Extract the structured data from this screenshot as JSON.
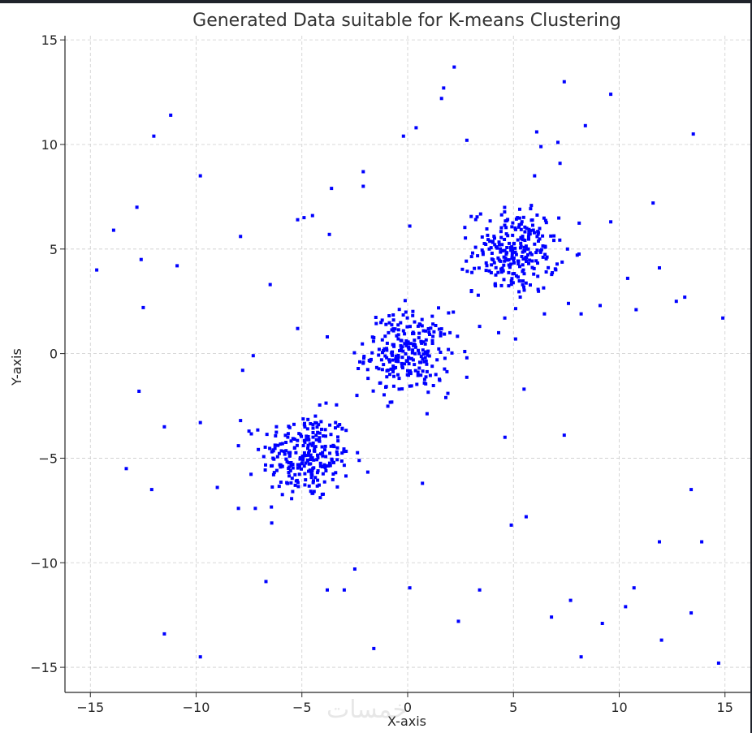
{
  "chart_data": {
    "type": "scatter",
    "title": "Generated Data suitable for K-means Clustering",
    "xlabel": "X-axis",
    "ylabel": "Y-axis",
    "xlim": [
      -16.2,
      16.2
    ],
    "ylim": [
      -16.2,
      15.2
    ],
    "xticks": [
      -15,
      -10,
      -5,
      0,
      5,
      10,
      15
    ],
    "yticks": [
      -15,
      -10,
      -5,
      0,
      5,
      10,
      15
    ],
    "xtick_labels": [
      "−15",
      "−10",
      "−5",
      "0",
      "5",
      "10",
      "15"
    ],
    "ytick_labels": [
      "−15",
      "−10",
      "−5",
      "0",
      "5",
      "10",
      "15"
    ],
    "grid": true,
    "marker_color": "#0000ff",
    "clusters": [
      {
        "center": [
          -4.8,
          -4.9
        ],
        "std": 1.05,
        "count": 260
      },
      {
        "center": [
          0.0,
          0.0
        ],
        "std": 1.0,
        "count": 250
      },
      {
        "center": [
          5.1,
          4.9
        ],
        "std": 1.0,
        "count": 260
      }
    ],
    "outliers": [
      [
        -14.7,
        4.0
      ],
      [
        -13.9,
        5.9
      ],
      [
        -12.8,
        7.0
      ],
      [
        -12.6,
        4.5
      ],
      [
        -12.5,
        2.2
      ],
      [
        -12.0,
        10.4
      ],
      [
        -11.2,
        11.4
      ],
      [
        -10.9,
        4.2
      ],
      [
        -9.8,
        8.5
      ],
      [
        -7.9,
        5.6
      ],
      [
        -6.5,
        3.3
      ],
      [
        -5.2,
        6.4
      ],
      [
        -4.9,
        6.5
      ],
      [
        -4.5,
        6.6
      ],
      [
        -3.7,
        5.7
      ],
      [
        -3.6,
        7.9
      ],
      [
        -2.1,
        8.7
      ],
      [
        -2.1,
        8.0
      ],
      [
        -0.2,
        10.4
      ],
      [
        0.4,
        10.8
      ],
      [
        0.1,
        6.1
      ],
      [
        1.6,
        12.2
      ],
      [
        1.7,
        12.7
      ],
      [
        2.2,
        13.7
      ],
      [
        2.8,
        10.2
      ],
      [
        6.1,
        10.6
      ],
      [
        6.3,
        9.9
      ],
      [
        7.1,
        10.1
      ],
      [
        7.2,
        9.1
      ],
      [
        6.0,
        8.5
      ],
      [
        7.4,
        13.0
      ],
      [
        8.4,
        10.9
      ],
      [
        9.6,
        12.4
      ],
      [
        13.5,
        10.5
      ],
      [
        11.6,
        7.2
      ],
      [
        9.6,
        6.3
      ],
      [
        10.4,
        3.6
      ],
      [
        10.8,
        2.1
      ],
      [
        11.9,
        4.1
      ],
      [
        12.7,
        2.5
      ],
      [
        13.1,
        2.7
      ],
      [
        14.9,
        1.7
      ],
      [
        9.1,
        2.3
      ],
      [
        8.2,
        1.9
      ],
      [
        7.6,
        2.4
      ],
      [
        4.3,
        1.0
      ],
      [
        5.1,
        0.7
      ],
      [
        2.0,
        1.0
      ],
      [
        2.7,
        0.1
      ],
      [
        2.8,
        -0.2
      ],
      [
        3.4,
        1.3
      ],
      [
        -5.2,
        1.2
      ],
      [
        -3.8,
        0.8
      ],
      [
        -7.3,
        -0.1
      ],
      [
        -7.8,
        -0.8
      ],
      [
        -12.7,
        -1.8
      ],
      [
        -11.5,
        -3.5
      ],
      [
        -9.8,
        -3.3
      ],
      [
        -7.9,
        -3.2
      ],
      [
        -13.3,
        -5.5
      ],
      [
        -12.1,
        -6.5
      ],
      [
        -9.0,
        -6.4
      ],
      [
        -8.0,
        -7.4
      ],
      [
        -7.2,
        -7.4
      ],
      [
        -6.7,
        -10.9
      ],
      [
        -3.8,
        -11.3
      ],
      [
        -3.0,
        -11.3
      ],
      [
        -2.5,
        -10.3
      ],
      [
        -1.6,
        -14.1
      ],
      [
        -11.5,
        -13.4
      ],
      [
        -9.8,
        -14.5
      ],
      [
        0.1,
        -11.2
      ],
      [
        0.7,
        -6.2
      ],
      [
        2.4,
        -12.8
      ],
      [
        3.4,
        -11.3
      ],
      [
        4.9,
        -8.2
      ],
      [
        5.6,
        -7.8
      ],
      [
        4.6,
        -4.0
      ],
      [
        5.5,
        -1.7
      ],
      [
        7.4,
        -3.9
      ],
      [
        6.8,
        -12.6
      ],
      [
        7.7,
        -11.8
      ],
      [
        8.2,
        -14.5
      ],
      [
        9.2,
        -12.9
      ],
      [
        10.3,
        -12.1
      ],
      [
        10.7,
        -11.2
      ],
      [
        11.9,
        -9.0
      ],
      [
        12.0,
        -13.7
      ],
      [
        13.4,
        -12.4
      ],
      [
        13.4,
        -6.5
      ],
      [
        13.9,
        -9.0
      ],
      [
        14.7,
        -14.8
      ],
      [
        -1.2,
        1.6
      ],
      [
        1.9,
        -1.9
      ],
      [
        -2.4,
        -2.0
      ]
    ]
  },
  "watermark": "خمسات"
}
